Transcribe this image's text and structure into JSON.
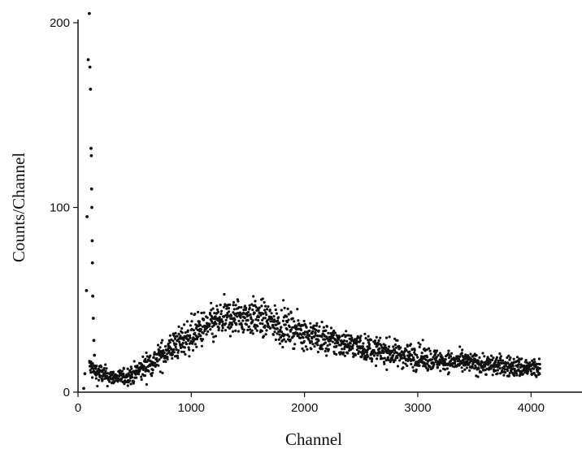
{
  "chart_data": {
    "type": "scatter",
    "title": "",
    "xlabel": "Channel",
    "ylabel": "Counts/Channel",
    "xlim": [
      0,
      4450
    ],
    "ylim": [
      0,
      205
    ],
    "xticks": [
      0,
      1000,
      2000,
      3000,
      4000
    ],
    "yticks": [
      0,
      100,
      200
    ],
    "grid": false,
    "series": [
      {
        "marker_color": "#111111",
        "description_points": "estimated envelope (channel, mean counts, spread)",
        "envelope": [
          [
            100,
            14,
            4
          ],
          [
            150,
            11,
            4
          ],
          [
            200,
            10,
            4
          ],
          [
            300,
            8,
            3
          ],
          [
            400,
            8,
            3
          ],
          [
            500,
            10,
            4
          ],
          [
            600,
            14,
            5
          ],
          [
            700,
            18,
            5
          ],
          [
            800,
            23,
            6
          ],
          [
            900,
            27,
            6
          ],
          [
            1000,
            31,
            7
          ],
          [
            1100,
            34,
            7
          ],
          [
            1200,
            37,
            7
          ],
          [
            1300,
            40,
            7
          ],
          [
            1400,
            41,
            7
          ],
          [
            1500,
            41,
            7
          ],
          [
            1600,
            40,
            7
          ],
          [
            1700,
            38,
            7
          ],
          [
            1800,
            36,
            7
          ],
          [
            1900,
            34,
            6
          ],
          [
            2000,
            32,
            6
          ],
          [
            2200,
            28,
            6
          ],
          [
            2400,
            26,
            5
          ],
          [
            2600,
            23,
            5
          ],
          [
            2800,
            21,
            5
          ],
          [
            3000,
            19,
            5
          ],
          [
            3200,
            17,
            4
          ],
          [
            3400,
            16,
            4
          ],
          [
            3600,
            15,
            4
          ],
          [
            3800,
            14,
            4
          ],
          [
            4000,
            13,
            4
          ],
          [
            4080,
            12,
            4
          ]
        ],
        "spike": [
          [
            50,
            2
          ],
          [
            60,
            10
          ],
          [
            75,
            55
          ],
          [
            80,
            95
          ],
          [
            90,
            180
          ],
          [
            100,
            205
          ],
          [
            105,
            176
          ],
          [
            110,
            164
          ],
          [
            115,
            132
          ],
          [
            118,
            128
          ],
          [
            120,
            110
          ],
          [
            122,
            100
          ],
          [
            125,
            82
          ],
          [
            127,
            70
          ],
          [
            130,
            52
          ],
          [
            135,
            40
          ],
          [
            140,
            28
          ],
          [
            145,
            20
          ]
        ]
      }
    ]
  }
}
